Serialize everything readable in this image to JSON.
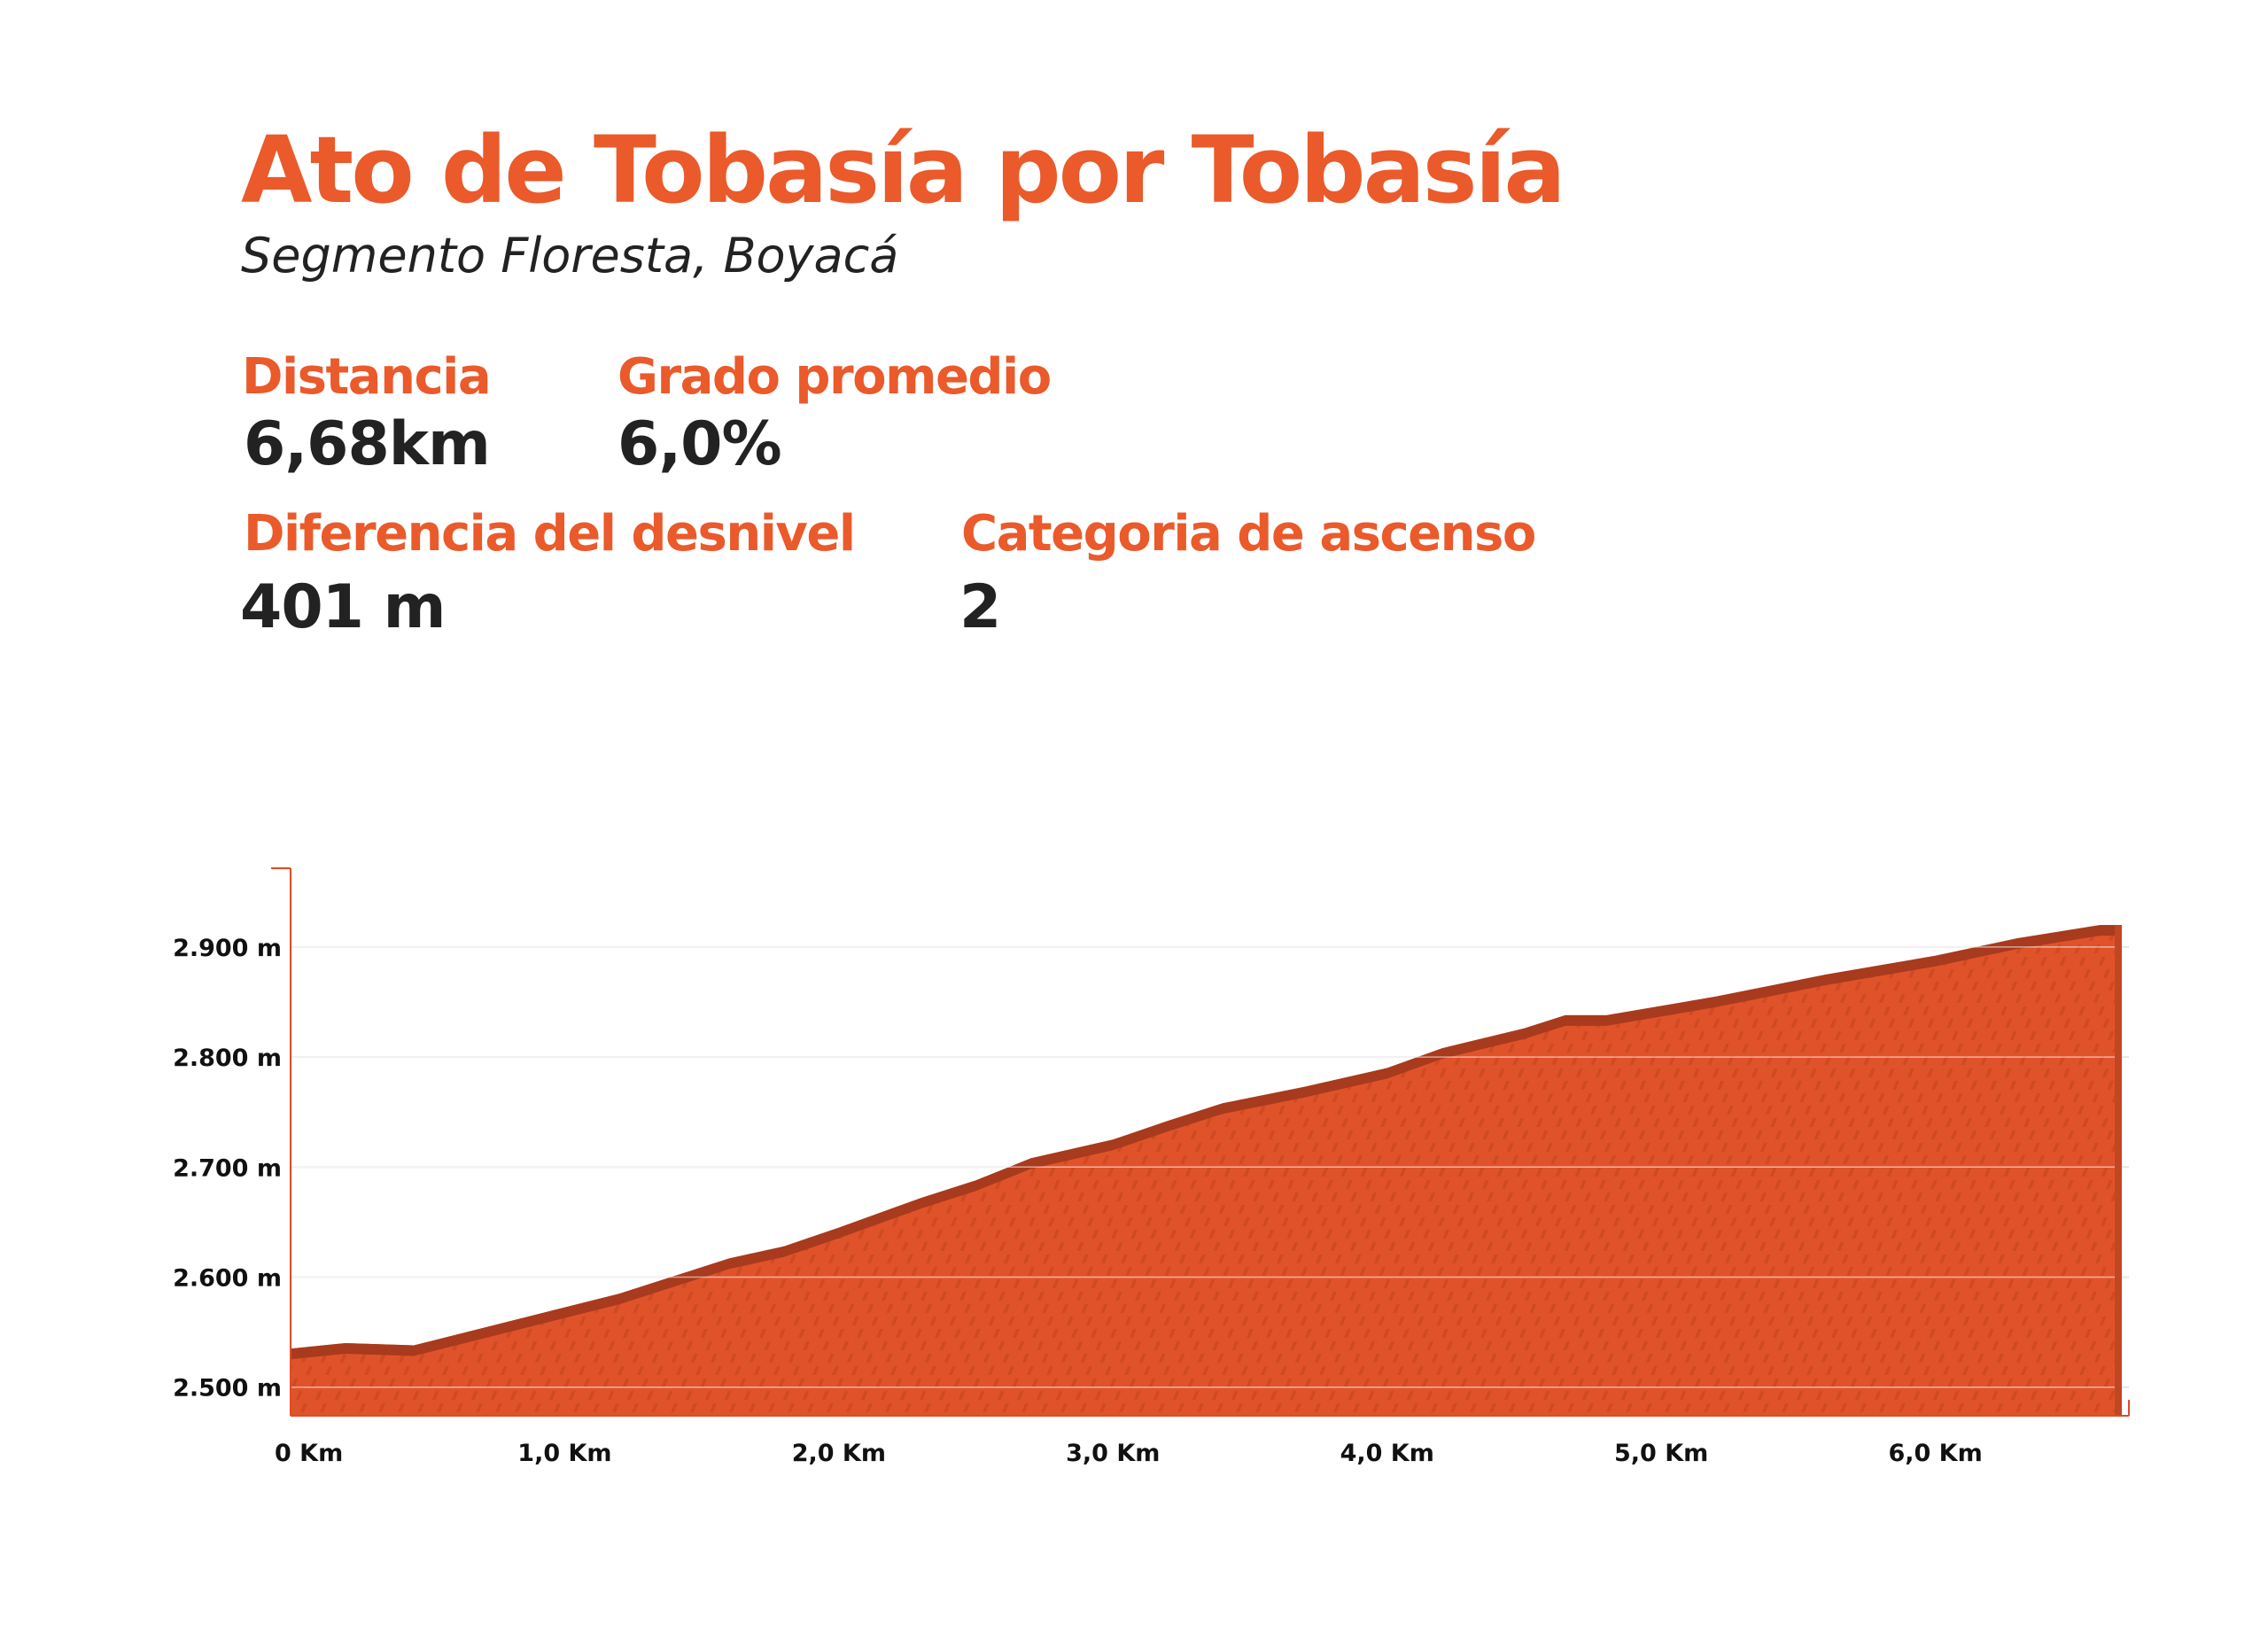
{
  "header": {
    "title": "Ato de Tobasía por Tobasía",
    "subtitle": "Segmento Floresta, Boyacá"
  },
  "stats": {
    "distance_label": "Distancia",
    "distance_value": "6,68km",
    "grade_label": "Grado promedio",
    "grade_value": "6,0%",
    "elevation_label": "Diferencia del desnivel",
    "elevation_value": "401 m",
    "category_label": "Categoria de ascenso",
    "category_value": "2"
  },
  "colors": {
    "accent": "#ea5a2b",
    "fill": "#e0532a",
    "edge": "#a83a1e",
    "text": "#222222"
  },
  "chart_data": {
    "type": "area",
    "x": [
      0,
      0.2,
      0.45,
      0.8,
      1.2,
      1.6,
      1.8,
      2.0,
      2.3,
      2.5,
      2.7,
      3.0,
      3.2,
      3.4,
      3.7,
      4.0,
      4.2,
      4.5,
      4.65,
      4.8,
      5.2,
      5.6,
      6.0,
      6.3,
      6.6,
      6.68
    ],
    "y": [
      2535,
      2540,
      2538,
      2560,
      2585,
      2617,
      2628,
      2645,
      2672,
      2688,
      2708,
      2725,
      2742,
      2758,
      2773,
      2790,
      2808,
      2826,
      2838,
      2838,
      2855,
      2875,
      2892,
      2908,
      2920,
      2920
    ],
    "xlim": [
      0,
      6.68
    ],
    "ylim": [
      2474,
      2974
    ],
    "yticks": [
      {
        "value": 2500,
        "label": "2.500 m"
      },
      {
        "value": 2600,
        "label": "2.600 m"
      },
      {
        "value": 2700,
        "label": "2.700 m"
      },
      {
        "value": 2800,
        "label": "2.800 m"
      },
      {
        "value": 2900,
        "label": "2.900 m"
      }
    ],
    "xticks": [
      {
        "value": 0,
        "label": "0 Km"
      },
      {
        "value": 1,
        "label": "1,0 Km"
      },
      {
        "value": 2,
        "label": "2,0 Km"
      },
      {
        "value": 3,
        "label": "3,0 Km"
      },
      {
        "value": 4,
        "label": "4,0 Km"
      },
      {
        "value": 5,
        "label": "5,0 Km"
      },
      {
        "value": 6,
        "label": "6,0 Km"
      }
    ],
    "grid": true
  }
}
